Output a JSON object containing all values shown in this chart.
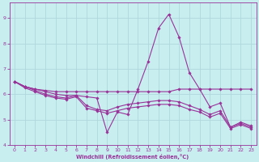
{
  "background_color": "#c8eef0",
  "grid_color": "#b0d8dc",
  "line_color": "#993399",
  "marker_color": "#993399",
  "xlabel": "Windchill (Refroidissement éolien,°C)",
  "xlabel_color": "#993399",
  "xlim": [
    -0.5,
    23.5
  ],
  "ylim": [
    4.0,
    9.6
  ],
  "yticks": [
    4,
    5,
    6,
    7,
    8,
    9
  ],
  "xticks": [
    0,
    1,
    2,
    3,
    4,
    5,
    6,
    7,
    8,
    9,
    10,
    11,
    12,
    13,
    14,
    15,
    16,
    17,
    18,
    19,
    20,
    21,
    22,
    23
  ],
  "series": [
    {
      "x": [
        0,
        1,
        2,
        3,
        4,
        5,
        6,
        7,
        8,
        9,
        10,
        11,
        12,
        13,
        14,
        15,
        16,
        17,
        18,
        19,
        20,
        21,
        22,
        23
      ],
      "y": [
        6.5,
        6.3,
        6.2,
        6.1,
        6.0,
        5.95,
        5.95,
        5.9,
        5.85,
        4.5,
        5.3,
        5.2,
        6.2,
        7.3,
        8.6,
        9.15,
        8.25,
        6.85,
        6.2,
        5.5,
        5.65,
        4.7,
        4.9,
        4.75
      ]
    },
    {
      "x": [
        0,
        1,
        2,
        3,
        4,
        5,
        6,
        7,
        8,
        9,
        10,
        11,
        12,
        13,
        14,
        15,
        16,
        17,
        18,
        19,
        20,
        21,
        22,
        23
      ],
      "y": [
        6.5,
        6.3,
        6.2,
        6.15,
        6.1,
        6.1,
        6.1,
        6.1,
        6.1,
        6.1,
        6.1,
        6.1,
        6.1,
        6.1,
        6.1,
        6.1,
        6.2,
        6.2,
        6.2,
        6.2,
        6.2,
        6.2,
        6.2,
        6.2
      ]
    },
    {
      "x": [
        0,
        1,
        2,
        3,
        4,
        5,
        6,
        7,
        8,
        9,
        10,
        11,
        12,
        13,
        14,
        15,
        16,
        17,
        18,
        19,
        20,
        21,
        22,
        23
      ],
      "y": [
        6.5,
        6.3,
        6.15,
        6.0,
        5.9,
        5.85,
        5.95,
        5.55,
        5.4,
        5.35,
        5.5,
        5.6,
        5.65,
        5.7,
        5.75,
        5.75,
        5.7,
        5.55,
        5.4,
        5.2,
        5.35,
        4.7,
        4.85,
        4.7
      ]
    },
    {
      "x": [
        0,
        1,
        2,
        3,
        4,
        5,
        6,
        7,
        8,
        9,
        10,
        11,
        12,
        13,
        14,
        15,
        16,
        17,
        18,
        19,
        20,
        21,
        22,
        23
      ],
      "y": [
        6.5,
        6.25,
        6.1,
        5.95,
        5.85,
        5.8,
        5.9,
        5.45,
        5.35,
        5.25,
        5.35,
        5.45,
        5.5,
        5.55,
        5.6,
        5.6,
        5.55,
        5.4,
        5.3,
        5.1,
        5.25,
        4.65,
        4.8,
        4.65
      ]
    }
  ]
}
